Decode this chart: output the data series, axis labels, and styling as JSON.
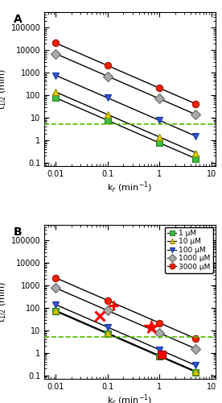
{
  "KD_values": [
    1,
    10,
    100,
    1000,
    3000
  ],
  "kr_values": [
    0.01,
    0.1,
    1.0,
    5.0
  ],
  "oxime_A": 10,
  "oxime_B": 100,
  "dashed_y": 5.0,
  "markers": [
    "s",
    "^",
    "v",
    "D",
    "o"
  ],
  "markerfacecolors": [
    "#44bb44",
    "#ddcc00",
    "#3355cc",
    "#aaaaaa",
    "#ee2200"
  ],
  "markeredgecolors": [
    "#228822",
    "#998800",
    "#1133aa",
    "#666666",
    "#aa1100"
  ],
  "legend_labels": [
    "1 μM",
    "10 μM",
    "100 μM",
    "1000 μM",
    "3000 μM"
  ],
  "special_B": {
    "tabun_obidoxime": {
      "kr": 0.07,
      "t12": 45,
      "marker": "x",
      "ms": 9
    },
    "cyclosarin_pralidoxime": {
      "kr": 0.13,
      "t12": 130,
      "marker": "+",
      "ms": 9
    },
    "obidoxime": {
      "kr": 0.7,
      "t12": 14,
      "marker": "*",
      "ms": 13
    },
    "HI6": {
      "kr": 1.1,
      "t12": 0.85,
      "marker": "s",
      "ms": 7
    }
  },
  "xlabel": "k$_r$ (min$^{-1}$)",
  "ylabel": "t$_{1/2}$ (min)",
  "title_A": "A",
  "title_B": "B",
  "yticks": [
    0.1,
    1,
    10,
    100,
    1000,
    10000,
    100000
  ],
  "ytick_labels": [
    "0.1",
    "1",
    "10",
    "100",
    "1000",
    "10000",
    "100000"
  ],
  "xticks": [
    0.01,
    0.1,
    1,
    10
  ],
  "xtick_labels": [
    "0.01",
    "0.1",
    "1",
    "10"
  ],
  "xlim": [
    0.006,
    12
  ],
  "ylim": [
    0.07,
    500000
  ],
  "dashed_color": "#55bb00",
  "line_color": "black",
  "line_width": 1.0,
  "marker_size": 6,
  "marker_edge_width": 0.8
}
